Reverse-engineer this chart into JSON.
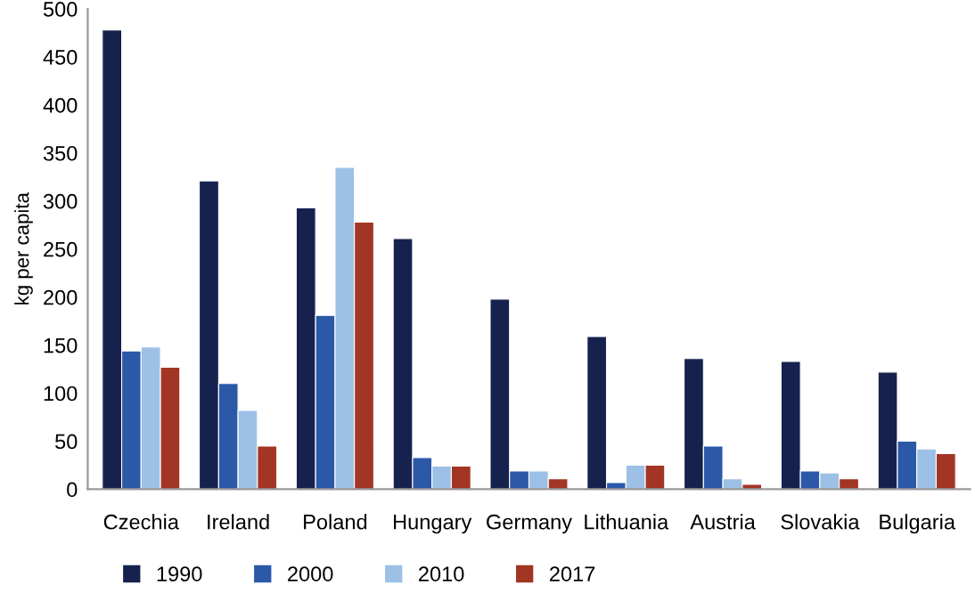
{
  "chart_data": {
    "type": "bar",
    "ylabel": "kg per capita",
    "categories": [
      "Czechia",
      "Ireland",
      "Poland",
      "Hungary",
      "Germany",
      "Lithuania",
      "Austria",
      "Slovakia",
      "Bulgaria"
    ],
    "series": [
      {
        "name": "1990",
        "color": "#16224d",
        "values": [
          478,
          321,
          293,
          261,
          198,
          159,
          136,
          133,
          122
        ]
      },
      {
        "name": "2000",
        "color": "#2c58a8",
        "values": [
          144,
          110,
          181,
          33,
          19,
          7,
          45,
          19,
          50
        ]
      },
      {
        "name": "2010",
        "color": "#9dc0e6",
        "values": [
          148,
          82,
          335,
          24,
          19,
          25,
          11,
          17,
          42
        ]
      },
      {
        "name": "2017",
        "color": "#a33525",
        "values": [
          127,
          45,
          278,
          24,
          11,
          25,
          5,
          11,
          37
        ]
      }
    ],
    "ylim": [
      0,
      500
    ],
    "yticks": [
      0,
      50,
      100,
      150,
      200,
      250,
      300,
      350,
      400,
      450,
      500
    ],
    "grid": false,
    "legend": "bottom"
  }
}
